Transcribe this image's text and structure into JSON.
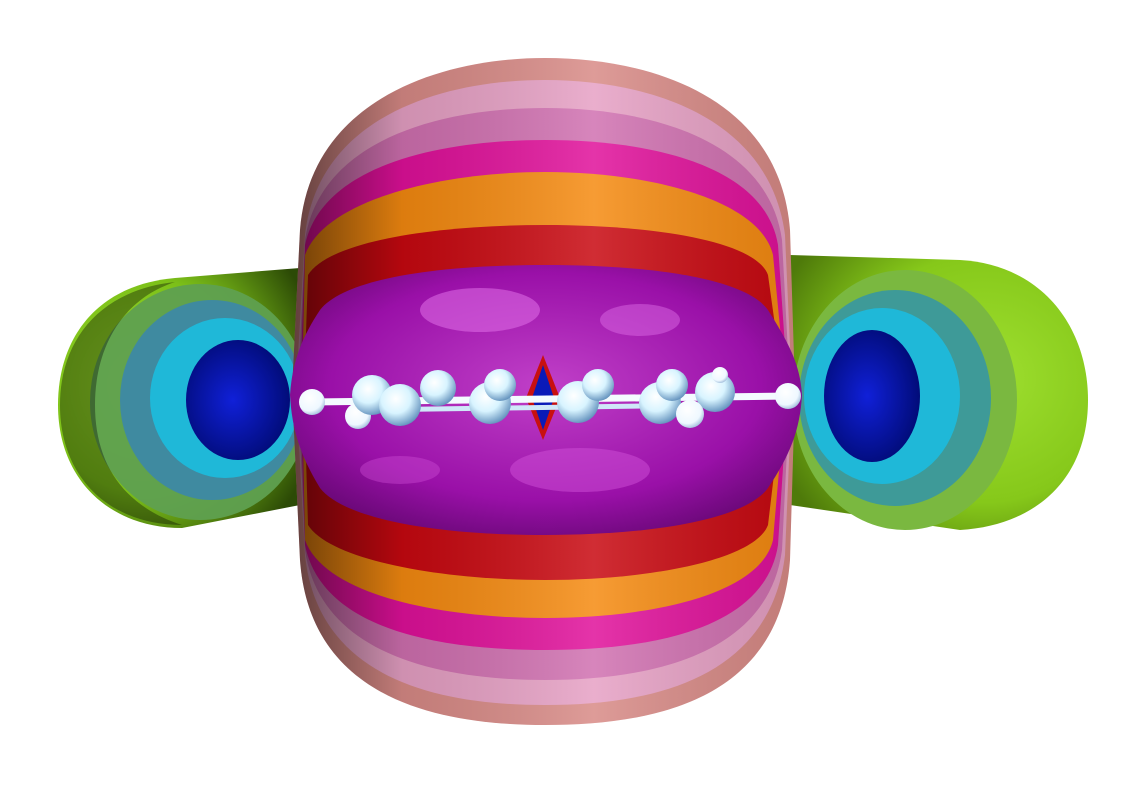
{
  "scene": {
    "subject": "molecular-electrostatic-isosurface",
    "background_color": "#ffffff",
    "colors": {
      "lobe_green": "#8fd11a",
      "lobe_green_dark": "#4a7a08",
      "lobe_mid_green": "#5fa85a",
      "lobe_teal": "#2a9ab0",
      "lobe_cyan": "#1fc0e0",
      "lobe_blue": "#0a1ab8",
      "shell_salmon": "#d88a86",
      "shell_pink": "#e8a0c8",
      "shell_pink_light": "#f0b0d4",
      "shell_magenta": "#e0109a",
      "shell_orange": "#f58a10",
      "shell_red": "#c80810",
      "core_purple": "#9a10a8",
      "core_highlight": "#f078f0",
      "atom_color": "#d8f4ff",
      "atom_shadow": "#5a8ab8",
      "bond_color": "#f4fbff"
    }
  }
}
